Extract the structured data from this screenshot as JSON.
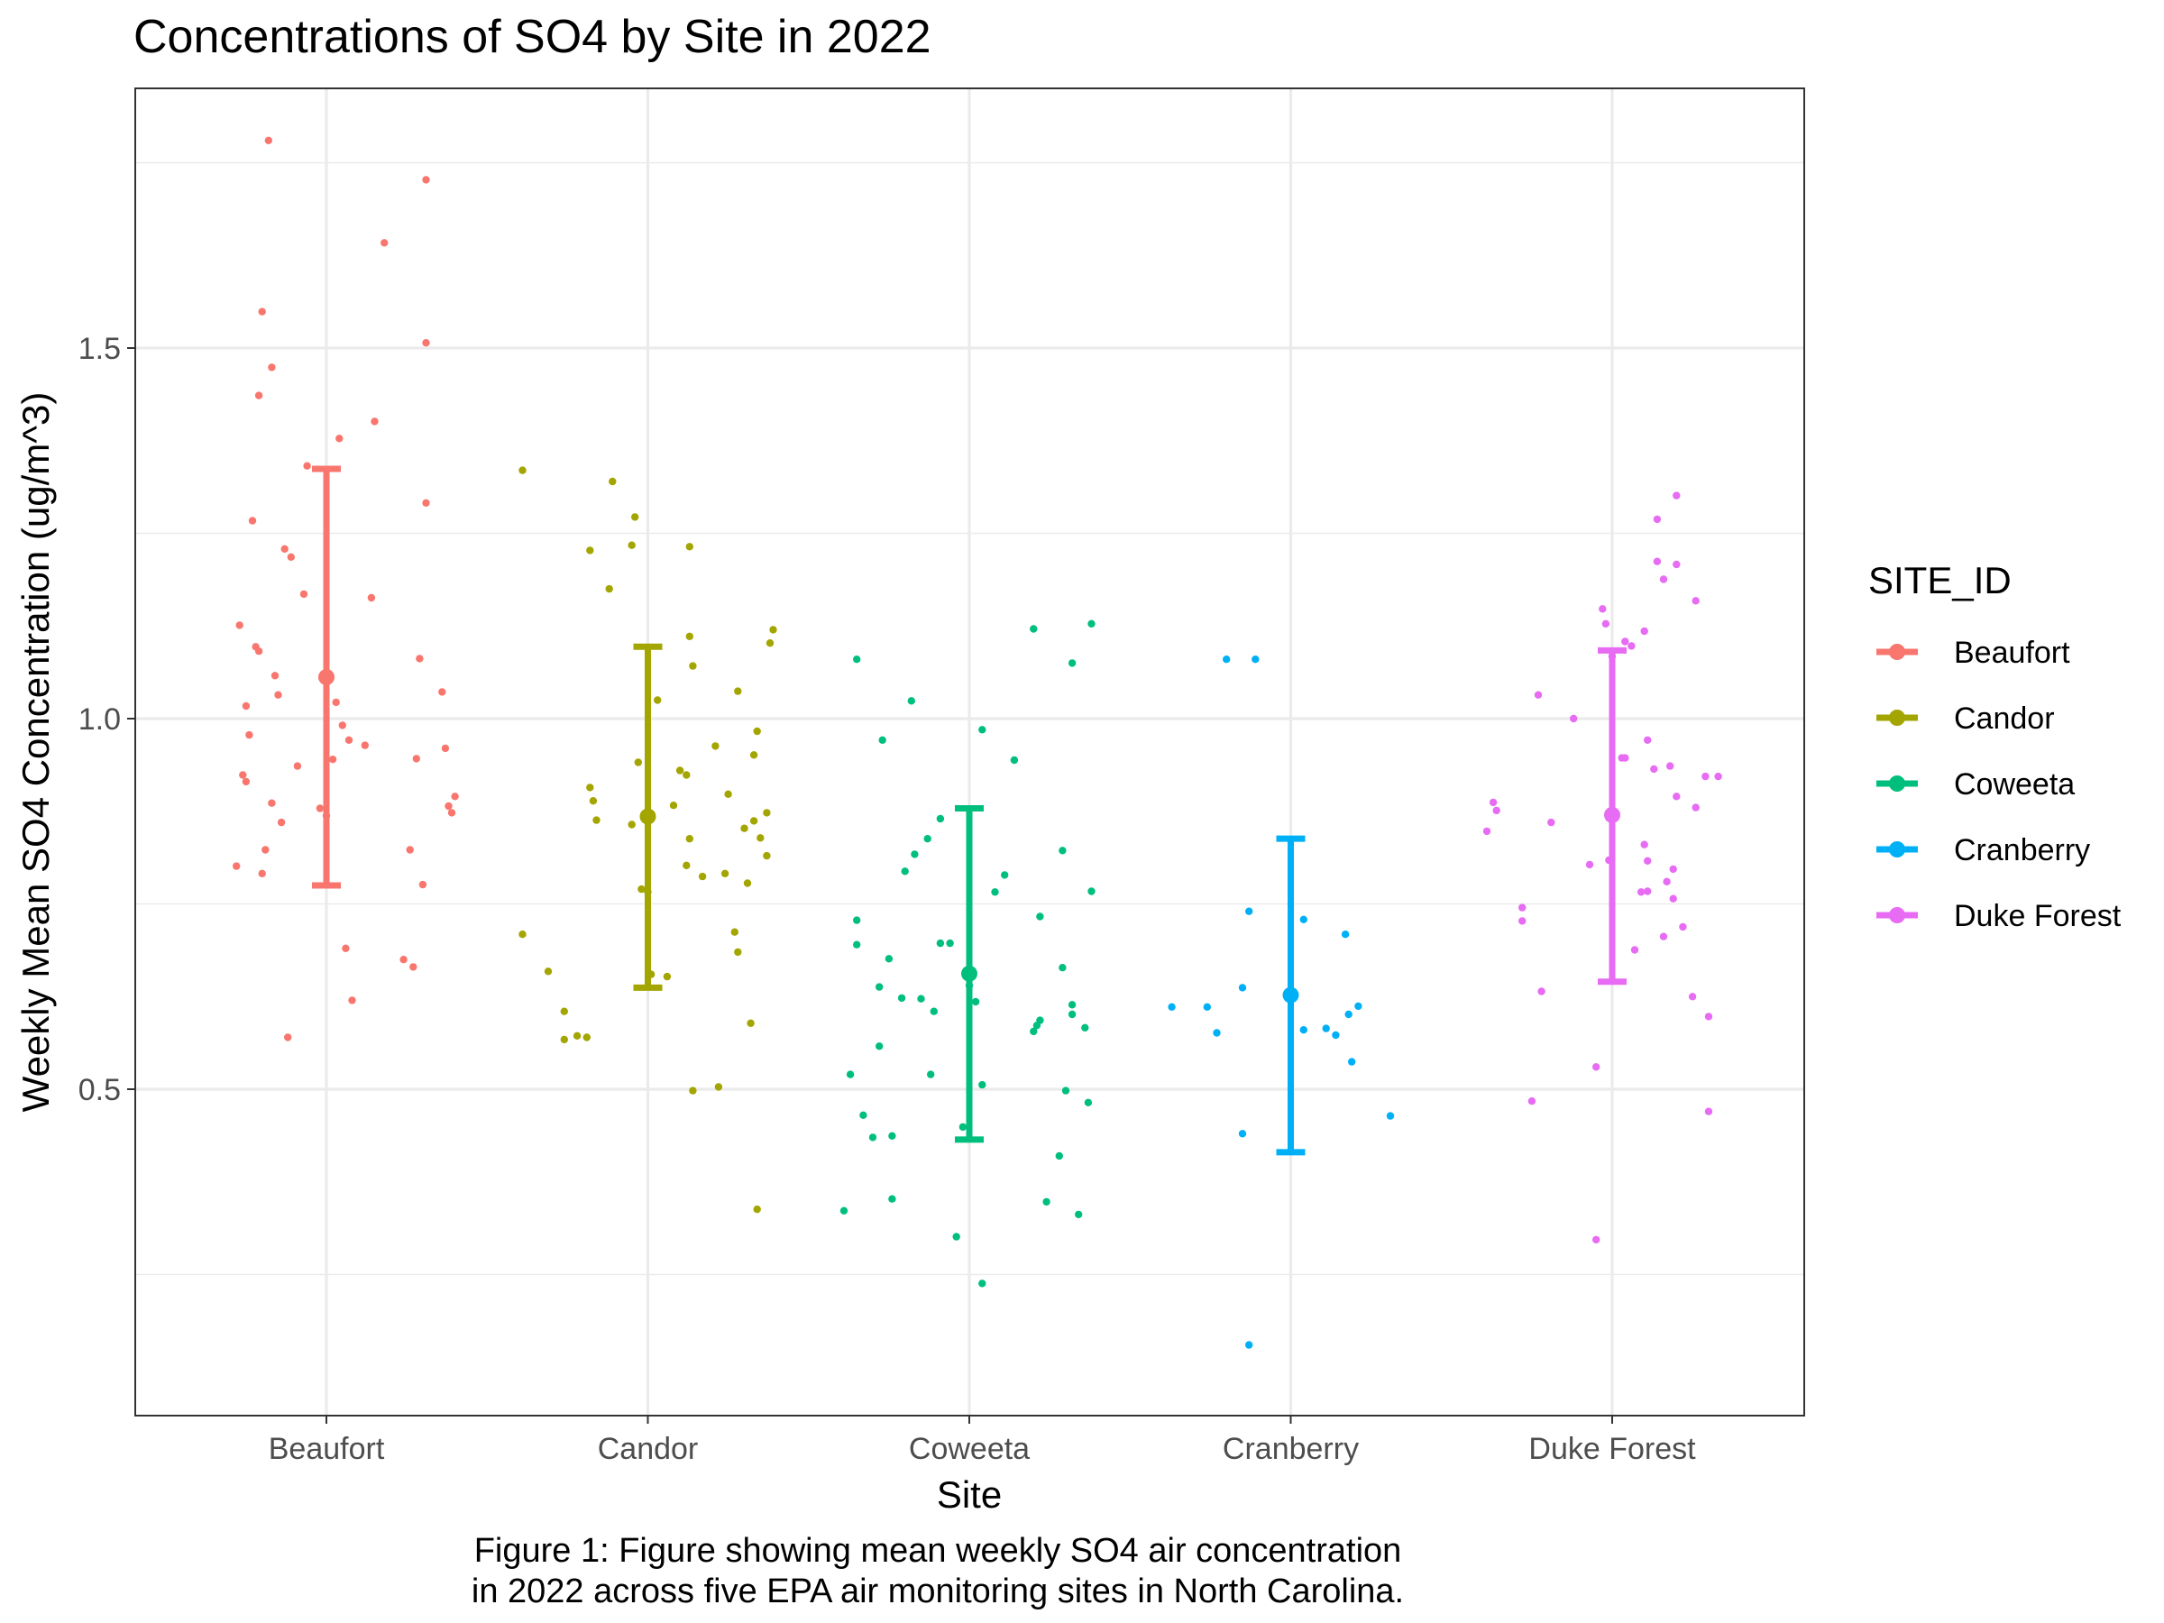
{
  "chart_data": {
    "type": "scatter",
    "title": "Concentrations of SO4 by Site in 2022",
    "xlabel": "Site",
    "ylabel": "Weekly Mean SO4 Concentration (ug/m^3)",
    "ylim": [
      0.06,
      1.85
    ],
    "yticks": [
      0.5,
      1.0,
      1.5
    ],
    "ytick_labels": [
      "0.5",
      "1.0",
      "1.5"
    ],
    "y_minor_gridlines": [
      0.25,
      0.75,
      1.25,
      1.75
    ],
    "categories": [
      "Beaufort",
      "Candor",
      "Coweeta",
      "Cranberry",
      "Duke Forest"
    ],
    "grid": true,
    "legend": {
      "title": "SITE_ID",
      "placement": "right",
      "entries": [
        "Beaufort",
        "Candor",
        "Coweeta",
        "Cranberry",
        "Duke Forest"
      ]
    },
    "caption": [
      "Figure 1: Figure showing mean weekly SO4 air concentration",
      "in 2022 across five EPA air monitoring sites in North Carolina."
    ],
    "series": [
      {
        "name": "Beaufort",
        "color": "#F8766D",
        "mean": 1.056,
        "lower": 0.775,
        "upper": 1.337,
        "points": [
          [
            -0.27,
            1.126
          ],
          [
            -0.28,
            0.801
          ],
          [
            -0.25,
            0.915
          ],
          [
            -0.26,
            0.924
          ],
          [
            -0.25,
            1.017
          ],
          [
            -0.24,
            0.978
          ],
          [
            -0.22,
            1.097
          ],
          [
            -0.21,
            1.091
          ],
          [
            -0.2,
            0.791
          ],
          [
            -0.19,
            0.823
          ],
          [
            -0.17,
            0.886
          ],
          [
            -0.15,
            1.032
          ],
          [
            -0.16,
            1.058
          ],
          [
            -0.21,
            1.436
          ],
          [
            -0.2,
            1.549
          ],
          [
            -0.17,
            1.474
          ],
          [
            -0.18,
            1.78
          ],
          [
            -0.23,
            1.267
          ],
          [
            -0.13,
            1.229
          ],
          [
            -0.11,
            1.218
          ],
          [
            -0.14,
            0.86
          ],
          [
            -0.09,
            0.936
          ],
          [
            -0.07,
            1.168
          ],
          [
            -0.06,
            1.341
          ],
          [
            -0.02,
            0.879
          ],
          [
            0.0,
            0.869
          ],
          [
            0.02,
            0.945
          ],
          [
            0.03,
            1.022
          ],
          [
            0.05,
            0.991
          ],
          [
            0.07,
            0.971
          ],
          [
            0.08,
            0.62
          ],
          [
            -0.12,
            0.57
          ],
          [
            0.04,
            1.378
          ],
          [
            0.06,
            0.69
          ],
          [
            0.12,
            0.964
          ],
          [
            0.14,
            1.163
          ],
          [
            0.15,
            1.401
          ],
          [
            0.18,
            1.642
          ],
          [
            0.24,
            0.675
          ],
          [
            0.26,
            0.823
          ],
          [
            0.27,
            0.665
          ],
          [
            0.28,
            0.946
          ],
          [
            0.29,
            1.081
          ],
          [
            0.3,
            0.776
          ],
          [
            0.31,
            1.291
          ],
          [
            0.31,
            1.507
          ],
          [
            0.31,
            1.727
          ],
          [
            0.36,
            1.036
          ],
          [
            0.37,
            0.96
          ],
          [
            0.38,
            0.882
          ],
          [
            0.39,
            0.873
          ],
          [
            0.4,
            0.895
          ]
        ]
      },
      {
        "name": "Candor",
        "color": "#A3A500",
        "mean": 0.868,
        "lower": 0.637,
        "upper": 1.097,
        "points": [
          [
            -0.39,
            1.335
          ],
          [
            -0.39,
            0.709
          ],
          [
            -0.31,
            0.659
          ],
          [
            -0.26,
            0.605
          ],
          [
            -0.18,
            0.907
          ],
          [
            -0.17,
            0.889
          ],
          [
            -0.18,
            1.227
          ],
          [
            -0.16,
            0.863
          ],
          [
            -0.26,
            0.567
          ],
          [
            -0.22,
            0.572
          ],
          [
            -0.19,
            0.57
          ],
          [
            -0.12,
            1.175
          ],
          [
            -0.11,
            1.32
          ],
          [
            -0.05,
            0.857
          ],
          [
            -0.05,
            1.234
          ],
          [
            -0.04,
            1.272
          ],
          [
            -0.03,
            0.941
          ],
          [
            -0.02,
            0.77
          ],
          [
            0.0,
            0.766
          ],
          [
            0.01,
            0.655
          ],
          [
            0.03,
            1.025
          ],
          [
            0.06,
            0.652
          ],
          [
            0.08,
            0.883
          ],
          [
            0.1,
            0.93
          ],
          [
            0.12,
            0.924
          ],
          [
            0.12,
            0.802
          ],
          [
            0.13,
            0.838
          ],
          [
            0.13,
            1.111
          ],
          [
            0.13,
            1.232
          ],
          [
            0.14,
            1.071
          ],
          [
            0.14,
            0.498
          ],
          [
            0.17,
            0.787
          ],
          [
            0.21,
            0.963
          ],
          [
            0.22,
            0.503
          ],
          [
            0.24,
            0.791
          ],
          [
            0.25,
            0.898
          ],
          [
            0.27,
            0.712
          ],
          [
            0.28,
            0.685
          ],
          [
            0.3,
            0.852
          ],
          [
            0.28,
            1.037
          ],
          [
            0.31,
            0.778
          ],
          [
            0.32,
            0.589
          ],
          [
            0.33,
            0.951
          ],
          [
            0.33,
            0.862
          ],
          [
            0.34,
            0.338
          ],
          [
            0.34,
            0.983
          ],
          [
            0.35,
            0.839
          ],
          [
            0.37,
            0.815
          ],
          [
            0.37,
            0.873
          ],
          [
            0.38,
            1.102
          ],
          [
            0.39,
            1.12
          ]
        ]
      },
      {
        "name": "Coweeta",
        "color": "#00BF7D",
        "mean": 0.656,
        "lower": 0.432,
        "upper": 0.879,
        "points": [
          [
            -0.39,
            0.336
          ],
          [
            -0.37,
            0.52
          ],
          [
            -0.35,
            0.728
          ],
          [
            -0.35,
            1.08
          ],
          [
            -0.35,
            0.695
          ],
          [
            -0.33,
            0.465
          ],
          [
            -0.3,
            0.435
          ],
          [
            -0.28,
            0.638
          ],
          [
            -0.28,
            0.558
          ],
          [
            -0.27,
            0.971
          ],
          [
            -0.25,
            0.676
          ],
          [
            -0.24,
            0.437
          ],
          [
            -0.24,
            0.352
          ],
          [
            -0.21,
            0.623
          ],
          [
            -0.2,
            0.794
          ],
          [
            -0.18,
            1.024
          ],
          [
            -0.17,
            0.817
          ],
          [
            -0.15,
            0.622
          ],
          [
            -0.13,
            0.838
          ],
          [
            -0.12,
            0.52
          ],
          [
            -0.11,
            0.605
          ],
          [
            -0.09,
            0.865
          ],
          [
            -0.09,
            0.697
          ],
          [
            -0.06,
            0.697
          ],
          [
            -0.04,
            0.301
          ],
          [
            -0.02,
            0.449
          ],
          [
            0.0,
            0.64
          ],
          [
            0.02,
            0.618
          ],
          [
            0.04,
            0.506
          ],
          [
            0.04,
            0.238
          ],
          [
            0.04,
            0.985
          ],
          [
            0.08,
            0.766
          ],
          [
            0.11,
            0.789
          ],
          [
            0.14,
            0.944
          ],
          [
            0.2,
            1.121
          ],
          [
            0.2,
            0.578
          ],
          [
            0.21,
            0.586
          ],
          [
            0.22,
            0.593
          ],
          [
            0.22,
            0.733
          ],
          [
            0.24,
            0.348
          ],
          [
            0.28,
            0.41
          ],
          [
            0.29,
            0.664
          ],
          [
            0.29,
            0.822
          ],
          [
            0.3,
            0.498
          ],
          [
            0.32,
            0.614
          ],
          [
            0.32,
            1.075
          ],
          [
            0.32,
            0.601
          ],
          [
            0.34,
            0.331
          ],
          [
            0.36,
            0.583
          ],
          [
            0.37,
            0.482
          ],
          [
            0.38,
            1.128
          ],
          [
            0.38,
            0.767
          ]
        ]
      },
      {
        "name": "Cranberry",
        "color": "#00B0F6",
        "mean": 0.627,
        "lower": 0.415,
        "upper": 0.838,
        "points": [
          [
            -0.37,
            0.611
          ],
          [
            -0.26,
            0.611
          ],
          [
            -0.23,
            0.576
          ],
          [
            -0.2,
            1.08
          ],
          [
            -0.15,
            0.637
          ],
          [
            -0.15,
            0.44
          ],
          [
            -0.13,
            0.155
          ],
          [
            -0.13,
            0.74
          ],
          [
            -0.11,
            1.08
          ],
          [
            0.04,
            0.729
          ],
          [
            0.04,
            0.58
          ],
          [
            0.11,
            0.582
          ],
          [
            0.14,
            0.573
          ],
          [
            0.17,
            0.709
          ],
          [
            0.18,
            0.601
          ],
          [
            0.19,
            0.537
          ],
          [
            0.21,
            0.612
          ],
          [
            0.31,
            0.464
          ]
        ]
      },
      {
        "name": "Duke Forest",
        "color": "#E76BF3",
        "mean": 0.87,
        "lower": 0.645,
        "upper": 1.092,
        "points": [
          [
            -0.39,
            0.848
          ],
          [
            -0.37,
            0.887
          ],
          [
            -0.36,
            0.876
          ],
          [
            -0.28,
            0.745
          ],
          [
            -0.28,
            0.727
          ],
          [
            -0.25,
            0.484
          ],
          [
            -0.23,
            1.032
          ],
          [
            -0.22,
            0.632
          ],
          [
            -0.19,
            0.86
          ],
          [
            -0.12,
            1.0
          ],
          [
            -0.07,
            0.803
          ],
          [
            -0.05,
            0.53
          ],
          [
            -0.05,
            0.297
          ],
          [
            -0.03,
            1.148
          ],
          [
            -0.02,
            1.128
          ],
          [
            -0.01,
            0.809
          ],
          [
            0.0,
            1.084
          ],
          [
            0.03,
            0.947
          ],
          [
            0.04,
            0.947
          ],
          [
            0.04,
            1.104
          ],
          [
            0.06,
            1.098
          ],
          [
            0.07,
            0.688
          ],
          [
            0.09,
            0.766
          ],
          [
            0.1,
            0.83
          ],
          [
            0.1,
            1.118
          ],
          [
            0.11,
            0.767
          ],
          [
            0.11,
            0.808
          ],
          [
            0.11,
            0.971
          ],
          [
            0.13,
            0.932
          ],
          [
            0.14,
            1.269
          ],
          [
            0.14,
            1.212
          ],
          [
            0.16,
            0.706
          ],
          [
            0.16,
            1.188
          ],
          [
            0.17,
            0.78
          ],
          [
            0.18,
            0.936
          ],
          [
            0.19,
            0.797
          ],
          [
            0.19,
            0.757
          ],
          [
            0.2,
            1.208
          ],
          [
            0.2,
            1.301
          ],
          [
            0.2,
            0.895
          ],
          [
            0.22,
            0.719
          ],
          [
            0.25,
            0.625
          ],
          [
            0.26,
            0.88
          ],
          [
            0.26,
            1.159
          ],
          [
            0.29,
            0.922
          ],
          [
            0.3,
            0.47
          ],
          [
            0.3,
            0.598
          ],
          [
            0.33,
            0.922
          ]
        ]
      }
    ]
  }
}
